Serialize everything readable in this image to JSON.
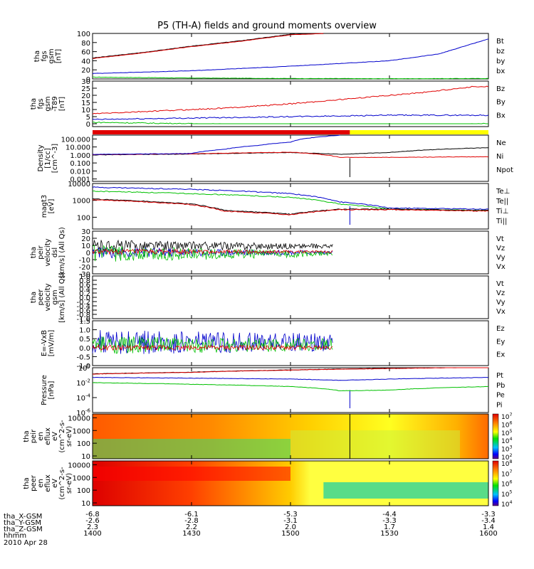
{
  "title": "P5 (TH-A) fields and ground moments overview",
  "colors": {
    "black": "#000000",
    "red": "#e00000",
    "green": "#00c000",
    "blue": "#0000cc",
    "yellow": "#ffff00"
  },
  "chart_data": [
    {
      "type": "line",
      "panel": "fgs_gsm",
      "ylabel": [
        "tha",
        "fgs",
        "gsm",
        "[nT]"
      ],
      "ylim": [
        0,
        100
      ],
      "yticks": [
        "100",
        "80",
        "60",
        "40",
        "20",
        "0"
      ],
      "legend": [
        {
          "label": "Bt",
          "color": "#000000"
        },
        {
          "label": "bz",
          "color": "#e00000"
        },
        {
          "label": "by",
          "color": "#00c000"
        },
        {
          "label": "bx",
          "color": "#0000cc"
        }
      ],
      "series": [
        {
          "name": "Bt",
          "color": "#000000",
          "x": [
            1400,
            1415,
            1430,
            1445,
            1500,
            1510
          ],
          "y": [
            46,
            58,
            72,
            84,
            98,
            100
          ]
        },
        {
          "name": "bz",
          "color": "#e00000",
          "x": [
            1400,
            1415,
            1430,
            1445,
            1500,
            1510
          ],
          "y": [
            45,
            57,
            71,
            83,
            97,
            100
          ]
        },
        {
          "name": "by",
          "color": "#00c000",
          "x": [
            1400,
            1430,
            1500,
            1530,
            1600
          ],
          "y": [
            4,
            2,
            1,
            0.5,
            1
          ]
        },
        {
          "name": "bx",
          "color": "#0000cc",
          "x": [
            1400,
            1430,
            1500,
            1530,
            1545,
            1600
          ],
          "y": [
            12,
            18,
            28,
            40,
            55,
            88
          ]
        }
      ]
    },
    {
      "type": "line",
      "panel": "fgs_gsm_t89",
      "ylabel": [
        "tha",
        "fgs",
        "gsm",
        "-T89",
        "[nT]"
      ],
      "ylim": [
        -2,
        30
      ],
      "yticks": [
        "30",
        "25",
        "20",
        "15",
        "10",
        "5",
        "0"
      ],
      "legend": [
        {
          "label": "Bz",
          "color": "#e00000"
        },
        {
          "label": "By",
          "color": "#00c000"
        },
        {
          "label": "Bx",
          "color": "#0000cc"
        }
      ],
      "series": [
        {
          "name": "Bz",
          "color": "#e00000",
          "x": [
            1400,
            1420,
            1440,
            1500,
            1520,
            1540,
            1555,
            1600
          ],
          "y": [
            7,
            9,
            11,
            14,
            18,
            22,
            26,
            26
          ]
        },
        {
          "name": "By",
          "color": "#00c000",
          "x": [
            1400,
            1430,
            1500,
            1530,
            1600
          ],
          "y": [
            1,
            0,
            -1,
            -1,
            0
          ]
        },
        {
          "name": "Bx",
          "color": "#0000cc",
          "x": [
            1400,
            1430,
            1500,
            1530,
            1600
          ],
          "y": [
            3,
            4,
            5,
            6,
            6
          ]
        }
      ]
    },
    {
      "type": "line",
      "panel": "density",
      "ylabel": [
        "Density",
        "[1/cc]",
        "[cm^-3]"
      ],
      "ylog": true,
      "ylim": [
        0.0005,
        300
      ],
      "yticks": [
        "100.000",
        "10.000",
        "1.000",
        "0.100",
        "0.010",
        "0.001"
      ],
      "legend": [
        {
          "label": "Ne",
          "color": "#e00000"
        },
        {
          "label": "Ni",
          "color": "#000000"
        },
        {
          "label": "Npot",
          "color": "#0000cc"
        }
      ],
      "series": [
        {
          "name": "Ni",
          "color": "#000000",
          "x": [
            1400,
            1430,
            1500,
            1515,
            1530,
            1600
          ],
          "y": [
            1,
            1.3,
            2,
            1.2,
            2,
            8
          ]
        },
        {
          "name": "Ne",
          "color": "#e00000",
          "x": [
            1400,
            1430,
            1500,
            1515,
            1530,
            1600
          ],
          "y": [
            1.1,
            1.4,
            2.2,
            0.5,
            0.5,
            0.6
          ]
        },
        {
          "name": "Npot",
          "color": "#0000cc",
          "x": [
            1400,
            1430,
            1440,
            1450,
            1500,
            1510,
            1515
          ],
          "y": [
            1.2,
            1.5,
            5,
            15,
            40,
            200,
            300
          ]
        }
      ]
    },
    {
      "type": "line",
      "panel": "temperature",
      "ylabel": [
        "magt3",
        "[eV]"
      ],
      "ylog": true,
      "ylim": [
        20,
        10000
      ],
      "yticks": [
        "10000",
        "1000",
        "100"
      ],
      "legend": [
        {
          "label": "Te⊥",
          "color": "#e00000"
        },
        {
          "label": "Te||",
          "color": "#000000"
        },
        {
          "label": "Ti⊥",
          "color": "#0000cc"
        },
        {
          "label": "Ti||",
          "color": "#00c000"
        }
      ],
      "series": [
        {
          "name": "Ti⊥",
          "color": "#0000cc",
          "x": [
            1400,
            1430,
            1500,
            1515,
            1530,
            1600
          ],
          "y": [
            6000,
            4500,
            2500,
            800,
            350,
            300
          ]
        },
        {
          "name": "Ti||",
          "color": "#00c000",
          "x": [
            1400,
            1430,
            1500,
            1515,
            1530,
            1600
          ],
          "y": [
            3500,
            2500,
            1500,
            600,
            300,
            250
          ]
        },
        {
          "name": "Te||",
          "color": "#000000",
          "x": [
            1400,
            1430,
            1440,
            1500,
            1515,
            1530,
            1600
          ],
          "y": [
            1200,
            600,
            250,
            150,
            300,
            300,
            250
          ]
        },
        {
          "name": "Te⊥",
          "color": "#e00000",
          "x": [
            1400,
            1430,
            1440,
            1500,
            1515,
            1530,
            1600
          ],
          "y": [
            1100,
            550,
            230,
            140,
            280,
            280,
            230
          ]
        }
      ]
    },
    {
      "type": "line",
      "panel": "peir_velocity",
      "ylabel": [
        "tha",
        "peir",
        "velocity",
        "dsl",
        "[km/s] (All Qs)"
      ],
      "ylim": [
        -30,
        30
      ],
      "yticks": [
        "30",
        "20",
        "10",
        "0",
        "-10",
        "-20",
        "-30"
      ],
      "legend": [
        {
          "label": "Vt",
          "color": "#000000"
        },
        {
          "label": "Vz",
          "color": "#e00000"
        },
        {
          "label": "Vy",
          "color": "#00c000"
        },
        {
          "label": "Vx",
          "color": "#0000cc"
        }
      ],
      "x_range": [
        1400,
        1513
      ]
    },
    {
      "type": "line",
      "panel": "peer_velocity",
      "ylabel": [
        "tha",
        "peer",
        "velocity",
        "gsm",
        "[km/s] (All Qs)"
      ],
      "ylim": [
        -1,
        1
      ],
      "yticks": [
        "1.0",
        "0.8",
        "0.6",
        "0.4",
        "0.2",
        "0.0",
        "-0.2",
        "-0.4",
        "-0.6",
        "-0.8",
        "-1.0"
      ],
      "legend": [
        {
          "label": "Vt",
          "color": "#000000"
        },
        {
          "label": "Vz",
          "color": "#e00000"
        },
        {
          "label": "Vy",
          "color": "#00c000"
        },
        {
          "label": "Vx",
          "color": "#0000cc"
        }
      ]
    },
    {
      "type": "line",
      "panel": "efield",
      "ylabel": [
        "E=-VxB",
        "[mV/m]"
      ],
      "ylim": [
        -1,
        1.5
      ],
      "yticks": [
        "1.5",
        "1.0",
        "0.5",
        "0.0",
        "-0.5",
        "-1.0"
      ],
      "legend": [
        {
          "label": "Ez",
          "color": "#e00000"
        },
        {
          "label": "Ey",
          "color": "#00c000"
        },
        {
          "label": "Ex",
          "color": "#0000cc"
        }
      ],
      "x_range": [
        1400,
        1513
      ]
    },
    {
      "type": "line",
      "panel": "pressure",
      "ylabel": [
        "Pressure",
        "[nPa]"
      ],
      "ylog": true,
      "ylim": [
        1e-06,
        1
      ],
      "yticks": [
        "10^0",
        "10^-2",
        "10^-4",
        "10^-6"
      ],
      "legend": [
        {
          "label": "Pt",
          "color": "#000000"
        },
        {
          "label": "Pb",
          "color": "#e00000"
        },
        {
          "label": "Pe",
          "color": "#00c000"
        },
        {
          "label": "Pi",
          "color": "#0000cc"
        }
      ],
      "series": [
        {
          "name": "Pt",
          "color": "#000000",
          "x": [
            1400,
            1430,
            1500,
            1530,
            1600
          ],
          "y": [
            0.15,
            0.25,
            0.5,
            0.8,
            1.2
          ]
        },
        {
          "name": "Pb",
          "color": "#e00000",
          "x": [
            1400,
            1430,
            1500,
            1530,
            1600
          ],
          "y": [
            0.14,
            0.24,
            0.48,
            0.78,
            1.15
          ]
        },
        {
          "name": "Pi",
          "color": "#0000cc",
          "x": [
            1400,
            1430,
            1500,
            1515,
            1530,
            1600
          ],
          "y": [
            0.05,
            0.04,
            0.03,
            0.02,
            0.03,
            0.05
          ]
        },
        {
          "name": "Pe",
          "color": "#00c000",
          "x": [
            1400,
            1430,
            1500,
            1515,
            1530,
            1600
          ],
          "y": [
            0.01,
            0.006,
            0.003,
            0.0008,
            0.001,
            0.003
          ]
        }
      ]
    },
    {
      "type": "heatmap",
      "panel": "peir_energy",
      "ylabel": [
        "tha",
        "peir",
        "en",
        "eflux",
        "eV",
        "(cm^2-s-",
        "sr-eV)"
      ],
      "ylog": true,
      "yticks": [
        "10000",
        "1000",
        "100",
        "10"
      ],
      "colorbar": [
        "10^7",
        "10^6",
        "10^5",
        "10^4",
        "10^3",
        "10^2"
      ]
    },
    {
      "type": "heatmap",
      "panel": "peer_energy",
      "ylabel": [
        "tha",
        "peer",
        "en",
        "eflux",
        "eV",
        "(cm^2-s-",
        "sr-eV)"
      ],
      "ylog": true,
      "yticks": [
        "10000",
        "1000",
        "100",
        "10"
      ],
      "colorbar": [
        "10^8",
        "10^7",
        "10^6",
        "10^5",
        "10^4"
      ]
    }
  ],
  "x_axis": {
    "range": [
      1400,
      1600
    ],
    "ticks": [
      1400,
      1430,
      1500,
      1530,
      1600
    ],
    "rows": [
      {
        "label": "tha_X-GSM",
        "values": [
          "-6.8",
          "-6.1",
          "-5.3",
          "-4.4",
          "-3.3"
        ]
      },
      {
        "label": "tha_Y-GSM",
        "values": [
          "-2.6",
          "-2.8",
          "-3.1",
          "-3.3",
          "-3.4"
        ]
      },
      {
        "label": "tha_Z-GSM",
        "values": [
          "2.3",
          "2.2",
          "2.0",
          "1.7",
          "1.4"
        ]
      },
      {
        "label": "hhmm",
        "values": [
          "1400",
          "1430",
          "1500",
          "1530",
          "1600"
        ]
      }
    ],
    "date": "2010 Apr 28"
  }
}
